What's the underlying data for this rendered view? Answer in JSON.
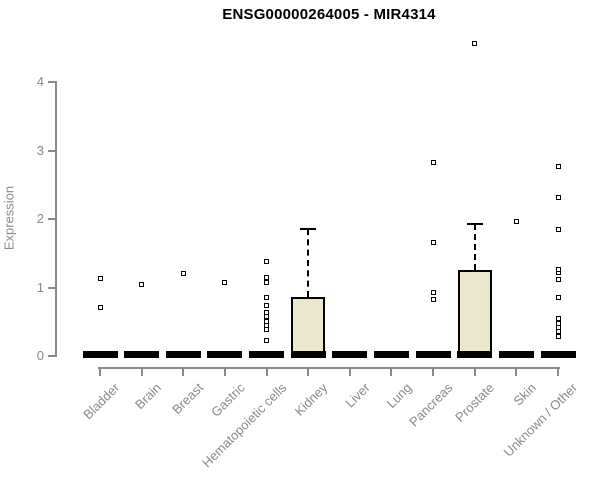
{
  "chart_data": {
    "type": "boxplot",
    "title": "ENSG00000264005 - MIR4314",
    "ylabel": "Expression",
    "xlabel": "",
    "ylim": [
      0,
      4
    ],
    "yticks": [
      0,
      1,
      2,
      3,
      4
    ],
    "grid": false,
    "legend": "none",
    "categories": [
      "Bladder",
      "Brain",
      "Breast",
      "Gastric",
      "Hematopoietic cells",
      "Kidney",
      "Liver",
      "Lung",
      "Pancreas",
      "Prostate",
      "Skin",
      "Unknown / Other"
    ],
    "series": [
      {
        "category": "Bladder",
        "q1": 0,
        "median": 0,
        "q3": 0,
        "whisker_low": 0,
        "whisker_high": 0,
        "outliers": [
          0.71,
          1.13
        ]
      },
      {
        "category": "Brain",
        "q1": 0,
        "median": 0,
        "q3": 0,
        "whisker_low": 0,
        "whisker_high": 0,
        "outliers": [
          1.05
        ]
      },
      {
        "category": "Breast",
        "q1": 0,
        "median": 0,
        "q3": 0,
        "whisker_low": 0,
        "whisker_high": 0,
        "outliers": [
          1.21
        ]
      },
      {
        "category": "Gastric",
        "q1": 0,
        "median": 0,
        "q3": 0,
        "whisker_low": 0,
        "whisker_high": 0,
        "outliers": [
          1.08
        ]
      },
      {
        "category": "Hematopoietic cells",
        "q1": 0,
        "median": 0,
        "q3": 0,
        "whisker_low": 0,
        "whisker_high": 0,
        "outliers": [
          0.23,
          0.38,
          0.44,
          0.5,
          0.57,
          0.64,
          0.73,
          0.86,
          1.08,
          1.15,
          1.38
        ]
      },
      {
        "category": "Kidney",
        "q1": 0,
        "median": 0,
        "q3": 0.86,
        "whisker_low": 0,
        "whisker_high": 1.86,
        "outliers": []
      },
      {
        "category": "Liver",
        "q1": 0,
        "median": 0,
        "q3": 0,
        "whisker_low": 0,
        "whisker_high": 0,
        "outliers": []
      },
      {
        "category": "Lung",
        "q1": 0,
        "median": 0,
        "q3": 0,
        "whisker_low": 0,
        "whisker_high": 0,
        "outliers": []
      },
      {
        "category": "Pancreas",
        "q1": 0,
        "median": 0,
        "q3": 0,
        "whisker_low": 0,
        "whisker_high": 0,
        "outliers": [
          0.83,
          0.93,
          1.65,
          2.82
        ]
      },
      {
        "category": "Prostate",
        "q1": 0,
        "median": 0,
        "q3": 1.26,
        "whisker_low": 0,
        "whisker_high": 1.93,
        "outliers": [
          4.56
        ]
      },
      {
        "category": "Skin",
        "q1": 0,
        "median": 0,
        "q3": 0,
        "whisker_low": 0,
        "whisker_high": 0,
        "outliers": [
          1.96
        ]
      },
      {
        "category": "Unknown / Other",
        "q1": 0,
        "median": 0,
        "q3": 0,
        "whisker_low": 0,
        "whisker_high": 0,
        "outliers": [
          0.28,
          0.36,
          0.41,
          0.48,
          0.55,
          0.85,
          1.12,
          1.22,
          1.27,
          1.84,
          2.32,
          2.77
        ]
      }
    ],
    "colors": {
      "box_fill": "#ebe7cd",
      "box_border": "#000000",
      "median": "#000000",
      "outlier_border": "#000000",
      "axis": "#8a8a8a",
      "tick_label": "#8a8a8a",
      "title": "#000000",
      "background": "#ffffff"
    }
  }
}
